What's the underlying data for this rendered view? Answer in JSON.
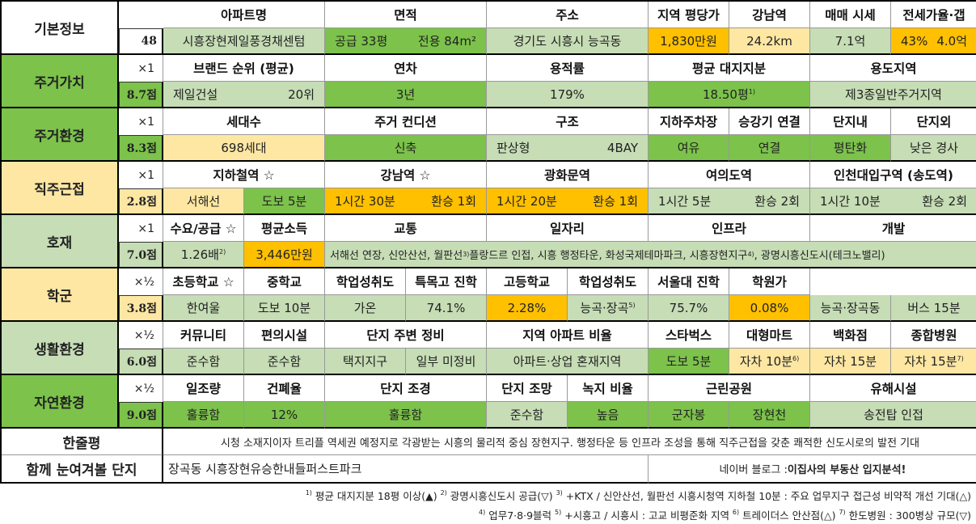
{
  "rows": {
    "basic": {
      "label": "기본정보",
      "number": "48",
      "headers": [
        "아파트명",
        "면적",
        "주소",
        "지역 평당가",
        "강남역",
        "매매 시세",
        "전세가율·갭"
      ],
      "apt_name": "시흥장현제일풍경채센텀",
      "area_supply": "공급 33평",
      "area_exclusive": "전용 84m²",
      "address": "경기도 시흥시 능곡동",
      "price_per_pyeong": "1,830만원",
      "gangnam_distance": "24.2km",
      "sale_price": "7.1억",
      "jeonse_ratio": "43%",
      "gap": "4.0억"
    },
    "residential_value": {
      "label": "주거가치",
      "weight": "×1",
      "score": "8.7점",
      "headers": [
        "브랜드 순위 (평균)",
        "연차",
        "용적률",
        "평균 대지지분",
        "용도지역"
      ],
      "brand": "제일건설",
      "brand_rank": "20위",
      "age": "3년",
      "far": "179%",
      "land_share": "18.50평",
      "land_note": "1)",
      "zoning": "제3종일반주거지역"
    },
    "residential_env": {
      "label": "주거환경",
      "weight": "×1",
      "score": "8.3점",
      "headers": [
        "세대수",
        "주거 컨디션",
        "구조",
        "지하주차장",
        "승강기 연결",
        "단지내",
        "단지외"
      ],
      "households": "698세대",
      "condition": "신축",
      "structure_type": "판상형",
      "bays": "4BAY",
      "parking": "여유",
      "elevator": "연결",
      "inner": "평탄화",
      "outer": "낮은 경사"
    },
    "commute": {
      "label": "직주근접",
      "weight": "×1",
      "score": "2.8점",
      "headers": [
        "지하철역 ☆",
        "강남역 ☆",
        "광화문역",
        "여의도역",
        "인천대입구역 (송도역)"
      ],
      "subway_line": "서해선",
      "subway_walk": "도보 5분",
      "gangnam_time": "1시간 30분",
      "gangnam_transfer": "환승 1회",
      "gwanghwamun_time": "1시간 20분",
      "gwanghwamun_transfer": "환승 1회",
      "yeouido_time": "1시간 5분",
      "yeouido_transfer": "환승 2회",
      "incheon_time": "1시간 10분",
      "incheon_transfer": "환승 2회"
    },
    "development": {
      "label": "호재",
      "weight": "×1",
      "score": "7.0점",
      "headers": [
        "수요/공급 ☆",
        "평균소득",
        "교통",
        "일자리",
        "인프라",
        "개발"
      ],
      "supply_demand": "1.26배",
      "sd_note": "2)",
      "income": "3,446만원",
      "details": "서해선 연장, 신안산선, 월판선",
      "details_note": "3)",
      "details_rest": " 플랑드르 인접, 시흥 행정타운, 화성국제테마파크, 시흥장현지구",
      "details_note2": "4)",
      "details_end": ", 광명시흥신도시(테크노밸리)"
    },
    "school": {
      "label": "학군",
      "weight": "×½",
      "score": "3.8점",
      "headers": [
        "초등학교 ☆",
        "중학교",
        "학업성취도",
        "특목고 진학",
        "고등학교",
        "학업성취도",
        "서울대 진학",
        "학원가"
      ],
      "elementary": "한여울",
      "elem_walk": "도보 10분",
      "middle": "가온",
      "middle_rate": "74.1%",
      "special_hs": "2.28%",
      "high": "능곡·장곡",
      "high_note": "5)",
      "high_rate": "75.7%",
      "snu": "0.08%",
      "academy": "능곡·장곡동",
      "academy_bus": "버스 15분"
    },
    "living": {
      "label": "생활환경",
      "weight": "×½",
      "score": "6.0점",
      "headers": [
        "커뮤니티",
        "편의시설",
        "단지 주변 정비",
        "지역 아파트 비율",
        "스타벅스",
        "대형마트",
        "백화점",
        "종합병원"
      ],
      "community": "준수함",
      "convenience": "준수함",
      "area1": "택지지구",
      "area2": "일부 미정비",
      "apt_ratio": "아파트·상업 혼재지역",
      "starbucks": "도보 5분",
      "mart": "자차 10분",
      "mart_note": "6)",
      "department": "자차 15분",
      "hospital": "자차 15분",
      "hospital_note": "7)"
    },
    "nature": {
      "label": "자연환경",
      "weight": "×½",
      "score": "9.0점",
      "headers": [
        "일조량",
        "건폐율",
        "단지 조경",
        "단지 조망",
        "녹지 비율",
        "근린공원",
        "유해시설"
      ],
      "sunlight": "훌륭함",
      "bcr": "12%",
      "landscape": "훌륭함",
      "view": "준수함",
      "green": "높음",
      "park1": "군자봉",
      "park2": "장현천",
      "hazard": "송전탑 인접"
    },
    "summary": {
      "label": "한줄평",
      "text": "시청 소재지이자 트리플 역세권 예정지로 각광받는 시흥의 물리적 중심 장현지구. 행정타운 등 인프라 조성을 통해 직주근접을 갖춘 쾌적한 신도시로의 발전 기대"
    },
    "related": {
      "label": "함께 눈여겨볼 단지",
      "text": "장곡동 시흥장현유승한내들퍼스트파크",
      "blog_prefix": "네이버 블로그 : ",
      "blog_name": "이집사의 부동산 입지분석!"
    }
  },
  "footnotes": {
    "n1": "1)",
    "t1": " 평균 대지지분 18평 이상(▲) ",
    "n2": "2)",
    "t2": " 광명시흥신도시 공급(▽) ",
    "n3": "3)",
    "t3": " +KTX / 신안산선, 월판선 시흥시청역 지하철 10분 : 주요 업무지구 접근성 비약적 개선 기대(△)",
    "n4": "4)",
    "t4": " 업무7·8·9블럭 ",
    "n5": "5)",
    "t5": " +시흥고 / 시흥시 : 고교 비평준화 지역 ",
    "n6": "6)",
    "t6": " 트레이더스 안산점(△) ",
    "n7": "7)",
    "t7": " 한도병원 : 300병상 규모(▽)"
  }
}
